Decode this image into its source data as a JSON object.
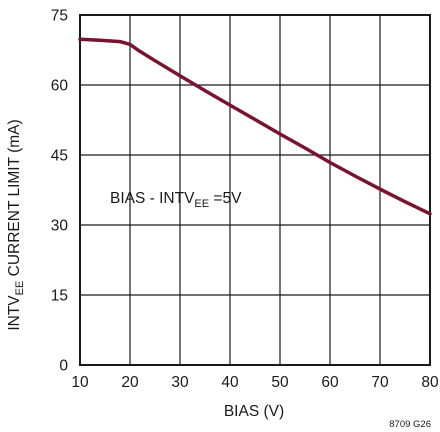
{
  "chart_data": {
    "type": "line",
    "title": "",
    "xlabel": "BIAS (V)",
    "ylabel": {
      "main": "INTV",
      "sub": "EE",
      "rest": " CURRENT LIMIT (mA)"
    },
    "xlim": [
      10,
      80
    ],
    "ylim": [
      0,
      75
    ],
    "xticks": [
      10,
      20,
      30,
      40,
      50,
      60,
      70,
      80
    ],
    "yticks": [
      0,
      15,
      30,
      45,
      60,
      75
    ],
    "grid": true,
    "annotation": {
      "pre": "BIAS - INTV",
      "sub": "EE",
      "post": " =5V"
    },
    "series": [
      {
        "color": "#7a1330",
        "x": [
          10,
          14,
          18,
          20,
          22,
          25,
          30,
          35,
          40,
          45,
          50,
          55,
          60,
          65,
          70,
          75,
          80
        ],
        "y": [
          69.8,
          69.6,
          69.3,
          68.7,
          67.2,
          65.2,
          62.0,
          58.8,
          55.7,
          52.6,
          49.5,
          46.5,
          43.4,
          40.5,
          37.7,
          35.0,
          32.4
        ]
      }
    ],
    "figure_id": "8709 G26"
  }
}
